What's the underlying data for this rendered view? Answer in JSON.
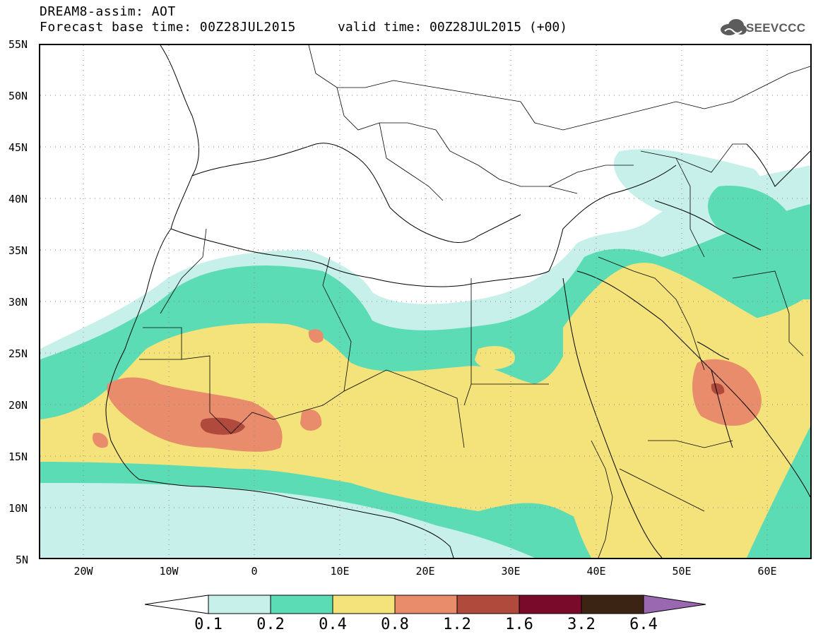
{
  "header": {
    "title_line1": "DREAM8-assim: AOT",
    "title_line2": "Forecast base time: 00Z28JUL2015",
    "valid_time": "valid time: 00Z28JUL2015 (+00)",
    "logo_text": "SEEVCCC"
  },
  "map": {
    "lat_ticks": [
      "55N",
      "50N",
      "45N",
      "40N",
      "35N",
      "30N",
      "25N",
      "20N",
      "15N",
      "10N",
      "5N"
    ],
    "lon_ticks": [
      "20W",
      "10W",
      "0",
      "10E",
      "20E",
      "30E",
      "40E",
      "50E",
      "60E"
    ],
    "lon_range": [
      -25,
      65
    ],
    "lat_range": [
      5,
      55
    ],
    "grid": true
  },
  "legend": {
    "levels": [
      "0.1",
      "0.2",
      "0.4",
      "0.8",
      "1.2",
      "1.6",
      "3.2",
      "6.4"
    ],
    "colors": [
      "#c7f0ea",
      "#5cdcb4",
      "#f4e37a",
      "#e98c6c",
      "#b04a3c",
      "#7a0a2a",
      "#3c2414",
      "#9a68b0"
    ]
  }
}
